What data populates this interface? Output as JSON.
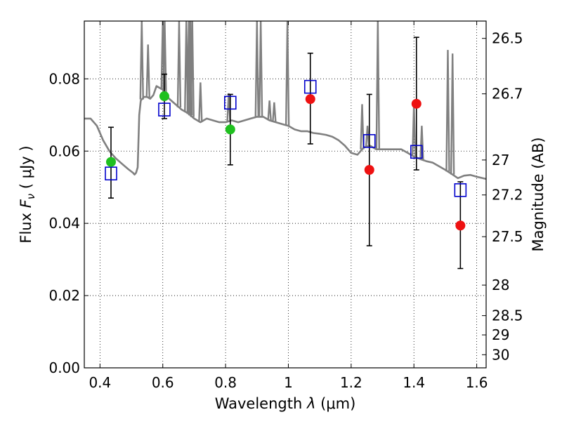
{
  "chart_data": {
    "type": "scatter",
    "xlabel": "Wavelength  λ (μm)",
    "ylabel": "Flux  F_ν  ( μJy )",
    "ylabel_parts": {
      "pre": "Flux  ",
      "sym": "F",
      "sub": "ν",
      "post": "  ( μJy )"
    },
    "xlabel_parts": {
      "pre": "Wavelength  ",
      "sym": "λ",
      "post": " (μm)"
    },
    "y2label": "Magnitude (AB)",
    "xlim": [
      0.35,
      1.63
    ],
    "ylim": [
      0.0,
      0.096
    ],
    "grid": true,
    "x_ticks": [
      {
        "value": 0.4,
        "label": "0.4"
      },
      {
        "value": 0.6,
        "label": "0.6"
      },
      {
        "value": 0.8,
        "label": "0.8"
      },
      {
        "value": 1.0,
        "label": "1"
      },
      {
        "value": 1.2,
        "label": "1.2"
      },
      {
        "value": 1.4,
        "label": "1.4"
      },
      {
        "value": 1.6,
        "label": "1.6"
      }
    ],
    "y_ticks": [
      {
        "value": 0.0,
        "label": "0.00"
      },
      {
        "value": 0.02,
        "label": "0.02"
      },
      {
        "value": 0.04,
        "label": "0.04"
      },
      {
        "value": 0.06,
        "label": "0.06"
      },
      {
        "value": 0.08,
        "label": "0.08"
      }
    ],
    "mag_ticks": [
      {
        "mag": 26.5,
        "label": "26.5"
      },
      {
        "mag": 26.7,
        "label": "26.7"
      },
      {
        "mag": 27.0,
        "label": "27"
      },
      {
        "mag": 27.2,
        "label": "27.2"
      },
      {
        "mag": 27.5,
        "label": "27.5"
      },
      {
        "mag": 28.0,
        "label": "28"
      },
      {
        "mag": 28.5,
        "label": "28.5"
      },
      {
        "mag": 29.0,
        "label": "29"
      },
      {
        "mag": 30.0,
        "label": "30"
      }
    ],
    "series": [
      {
        "name": "Model spectrum",
        "kind": "line",
        "color": "#808080",
        "x": [
          0.35,
          0.37,
          0.39,
          0.41,
          0.43,
          0.45,
          0.47,
          0.49,
          0.505,
          0.51,
          0.515,
          0.52,
          0.525,
          0.53,
          0.54,
          0.55,
          0.56,
          0.57,
          0.58,
          0.6,
          0.62,
          0.64,
          0.66,
          0.68,
          0.7,
          0.72,
          0.74,
          0.76,
          0.78,
          0.8,
          0.82,
          0.84,
          0.86,
          0.88,
          0.9,
          0.92,
          0.94,
          0.96,
          0.98,
          1.0,
          1.02,
          1.04,
          1.06,
          1.08,
          1.1,
          1.12,
          1.14,
          1.16,
          1.18,
          1.2,
          1.22,
          1.24,
          1.26,
          1.28,
          1.3,
          1.32,
          1.34,
          1.36,
          1.38,
          1.4,
          1.42,
          1.44,
          1.46,
          1.48,
          1.5,
          1.52,
          1.54,
          1.56,
          1.58,
          1.6,
          1.63
        ],
        "y": [
          0.069,
          0.069,
          0.067,
          0.063,
          0.06,
          0.058,
          0.0565,
          0.055,
          0.054,
          0.0535,
          0.054,
          0.0555,
          0.07,
          0.074,
          0.075,
          0.075,
          0.0745,
          0.0755,
          0.078,
          0.077,
          0.0745,
          0.073,
          0.0715,
          0.0705,
          0.069,
          0.068,
          0.069,
          0.0685,
          0.068,
          0.068,
          0.0685,
          0.068,
          0.0685,
          0.069,
          0.0695,
          0.0695,
          0.0685,
          0.068,
          0.0675,
          0.067,
          0.066,
          0.0655,
          0.0655,
          0.065,
          0.0648,
          0.0645,
          0.064,
          0.063,
          0.0615,
          0.0595,
          0.059,
          0.061,
          0.0615,
          0.0605,
          0.0605,
          0.0605,
          0.0605,
          0.0605,
          0.0595,
          0.0585,
          0.0578,
          0.0572,
          0.0568,
          0.0558,
          0.0548,
          0.0537,
          0.0525,
          0.0532,
          0.0534,
          0.0529,
          0.0523
        ]
      },
      {
        "name": "Observed (green)",
        "kind": "points",
        "color": "#1fc01f",
        "x": [
          0.435,
          0.605,
          0.815
        ],
        "y": [
          0.057,
          0.0752,
          0.066
        ]
      },
      {
        "name": "Observed (red)",
        "kind": "points",
        "color": "#ee1111",
        "x": [
          1.07,
          1.258,
          1.408,
          1.548
        ],
        "y": [
          0.0744,
          0.0548,
          0.0731,
          0.0394
        ]
      },
      {
        "name": "Model photometry",
        "kind": "open-squares",
        "color": "#0000cc",
        "x": [
          0.435,
          0.605,
          0.815,
          1.07,
          1.258,
          1.408,
          1.548
        ],
        "y": [
          0.0538,
          0.0715,
          0.0734,
          0.0778,
          0.0628,
          0.0598,
          0.0492
        ]
      },
      {
        "name": "Error bars",
        "kind": "errorbars",
        "color": "#000000",
        "x": [
          0.435,
          0.605,
          0.815,
          1.07,
          1.258,
          1.408,
          1.548
        ],
        "ylow": [
          0.047,
          0.069,
          0.0562,
          0.062,
          0.0338,
          0.0548,
          0.0275
        ],
        "yhigh": [
          0.0666,
          0.0813,
          0.0757,
          0.0871,
          0.0757,
          0.0915,
          0.0515
        ]
      }
    ],
    "emission_spikes": [
      {
        "x": 0.533,
        "top": 0.096
      },
      {
        "x": 0.553,
        "top": 0.0895
      },
      {
        "x": 0.6,
        "top": 0.096
      },
      {
        "x": 0.606,
        "top": 0.096
      },
      {
        "x": 0.652,
        "top": 0.096
      },
      {
        "x": 0.675,
        "top": 0.096
      },
      {
        "x": 0.683,
        "top": 0.096
      },
      {
        "x": 0.688,
        "top": 0.096
      },
      {
        "x": 0.694,
        "top": 0.096
      },
      {
        "x": 0.72,
        "top": 0.079
      },
      {
        "x": 0.81,
        "top": 0.076
      },
      {
        "x": 0.9,
        "top": 0.096
      },
      {
        "x": 0.912,
        "top": 0.096
      },
      {
        "x": 0.94,
        "top": 0.074
      },
      {
        "x": 0.955,
        "top": 0.0735
      },
      {
        "x": 0.997,
        "top": 0.096
      },
      {
        "x": 1.235,
        "top": 0.073
      },
      {
        "x": 1.252,
        "top": 0.067
      },
      {
        "x": 1.285,
        "top": 0.096
      },
      {
        "x": 1.4,
        "top": 0.073
      },
      {
        "x": 1.425,
        "top": 0.067
      },
      {
        "x": 1.508,
        "top": 0.088
      },
      {
        "x": 1.523,
        "top": 0.087
      }
    ]
  }
}
